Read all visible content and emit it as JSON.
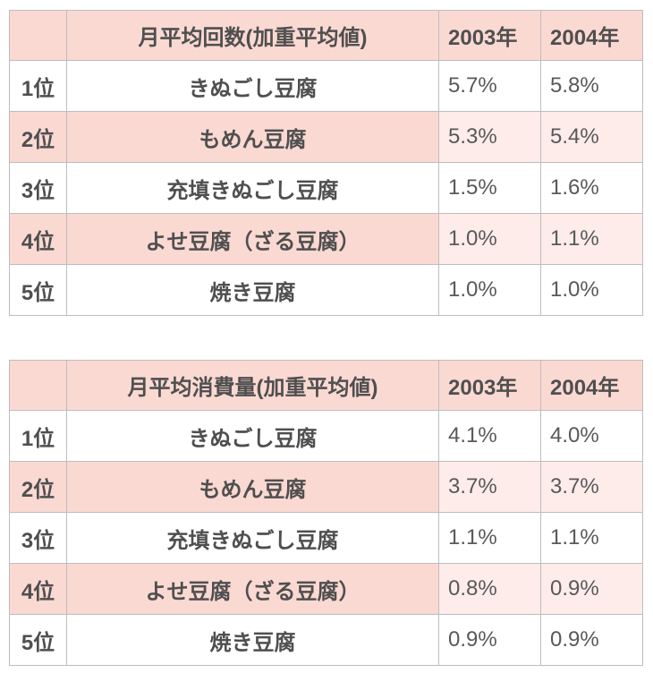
{
  "colors": {
    "header_pink": "#fbd9d3",
    "row_pink_strong": "#fbd9d3",
    "row_pink_light": "#fdecea",
    "border_gray": "#bdbdbd",
    "text_dark": "#4f4f4f",
    "text_value": "#595959",
    "background": "#ffffff"
  },
  "chart_data": [
    {
      "type": "table",
      "title": "月平均回数(加重平均値)",
      "legend_position": "none",
      "header": {
        "rank": "",
        "title": "月平均回数(加重平均値)",
        "y2003": "2003年",
        "y2004": "2004年"
      },
      "rows": [
        {
          "rank": "1位",
          "name": "きぬごし豆腐",
          "y2003": "5.7%",
          "y2004": "5.8%"
        },
        {
          "rank": "2位",
          "name": "もめん豆腐",
          "y2003": "5.3%",
          "y2004": "5.4%"
        },
        {
          "rank": "3位",
          "name": "充填きぬごし豆腐",
          "y2003": "1.5%",
          "y2004": "1.6%"
        },
        {
          "rank": "4位",
          "name": "よせ豆腐（ざる豆腐）",
          "y2003": "1.0%",
          "y2004": "1.1%"
        },
        {
          "rank": "5位",
          "name": "焼き豆腐",
          "y2003": "1.0%",
          "y2004": "1.0%"
        }
      ]
    },
    {
      "type": "table",
      "title": "月平均消費量(加重平均値)",
      "legend_position": "none",
      "header": {
        "rank": "",
        "title": "月平均消費量(加重平均値)",
        "y2003": "2003年",
        "y2004": "2004年"
      },
      "rows": [
        {
          "rank": "1位",
          "name": "きぬごし豆腐",
          "y2003": "4.1%",
          "y2004": "4.0%"
        },
        {
          "rank": "2位",
          "name": "もめん豆腐",
          "y2003": "3.7%",
          "y2004": "3.7%"
        },
        {
          "rank": "3位",
          "name": "充填きぬごし豆腐",
          "y2003": "1.1%",
          "y2004": "1.1%"
        },
        {
          "rank": "4位",
          "name": "よせ豆腐（ざる豆腐）",
          "y2003": "0.8%",
          "y2004": "0.9%"
        },
        {
          "rank": "5位",
          "name": "焼き豆腐",
          "y2003": "0.9%",
          "y2004": "0.9%"
        }
      ]
    }
  ]
}
